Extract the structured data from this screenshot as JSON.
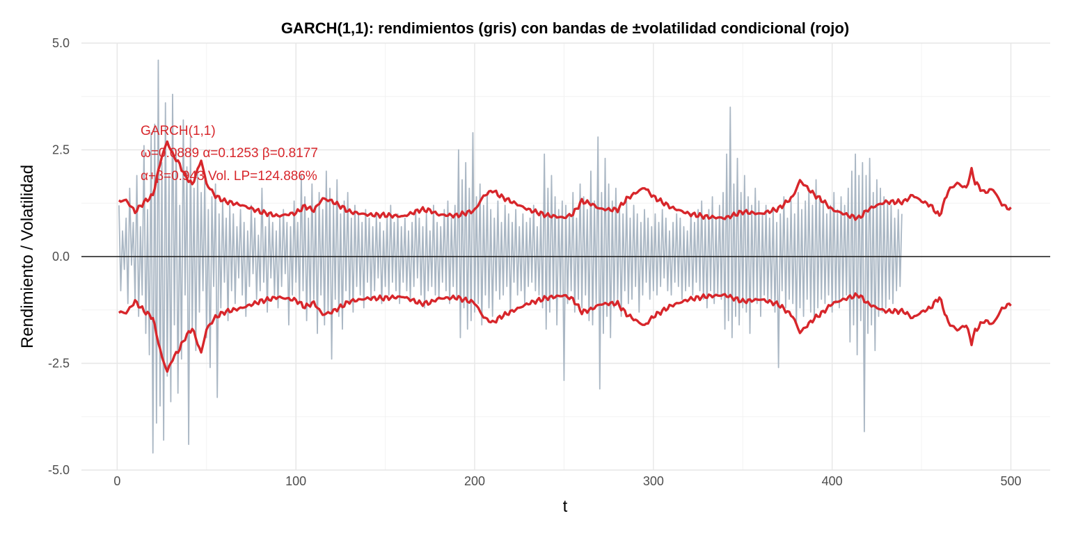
{
  "chart_data": {
    "type": "line",
    "title": "GARCH(1,1): rendimientos (gris) con bandas de ±volatilidad condicional (rojo)",
    "xlabel": "t",
    "ylabel": "Rendimiento / Volatilidad",
    "xlim": [
      -20,
      522
    ],
    "ylim": [
      -5.0,
      5.0
    ],
    "x_ticks": [
      0,
      100,
      200,
      300,
      400,
      500
    ],
    "x_tick_labels": [
      "0",
      "100",
      "200",
      "300",
      "400",
      "500"
    ],
    "y_ticks": [
      -5.0,
      -2.5,
      0.0,
      2.5,
      5.0
    ],
    "y_tick_labels": [
      "-5.0",
      "-2.5",
      "0.0",
      "2.5",
      "5.0"
    ],
    "grid": true,
    "hline": 0,
    "colors": {
      "returns": "#aab7c4",
      "bands": "#d7262b",
      "zero_line": "#1a1a1a",
      "annotation": "#d7262b"
    },
    "annotation": {
      "lines": [
        "GARCH(1,1)",
        "ω=0.0889  α=0.1253  β=0.8177",
        "α+β=0.943  Vol. LP=124.886%"
      ]
    },
    "series": [
      {
        "role": "returns",
        "n": 500,
        "summary": {
          "min": -4.6,
          "max": 4.6
        },
        "values": [
          1.2,
          -0.8,
          0.6,
          -0.3,
          0.9,
          -1.1,
          1.6,
          -0.2,
          0.8,
          -1.0,
          1.9,
          -1.4,
          0.7,
          -0.9,
          2.6,
          -1.8,
          1.1,
          -2.3,
          2.9,
          -4.6,
          3.1,
          -3.9,
          4.6,
          -3.5,
          2.2,
          -4.3,
          3.6,
          -2.8,
          1.9,
          -3.4,
          3.8,
          -1.6,
          2.5,
          -3.2,
          1.2,
          -2.4,
          3.2,
          -0.9,
          2.1,
          -4.4,
          2.8,
          -1.7,
          1.6,
          -2.2,
          2.0,
          -1.3,
          1.5,
          -0.8,
          1.8,
          -1.9,
          1.1,
          -2.6,
          1.4,
          -0.7,
          1.7,
          -3.3,
          1.0,
          -1.2,
          1.3,
          -0.6,
          0.9,
          -1.5,
          1.2,
          -0.8,
          1.0,
          -1.1,
          0.7,
          -0.5,
          1.1,
          -0.9,
          0.8,
          -1.4,
          0.6,
          -0.7,
          1.2,
          -0.4,
          0.9,
          -1.0,
          0.5,
          -0.8,
          1.6,
          -0.6,
          0.7,
          -1.3,
          1.0,
          -0.5,
          0.8,
          -0.9,
          0.6,
          -1.2,
          0.9,
          -0.7,
          1.1,
          -0.4,
          0.8,
          -1.6,
          0.7,
          -0.9,
          1.3,
          -0.6,
          0.8,
          -1.1,
          1.9,
          -0.8,
          1.4,
          -1.5,
          0.9,
          -1.2,
          1.7,
          -1.0,
          1.2,
          -1.8,
          1.5,
          -0.9,
          1.1,
          -1.6,
          2.0,
          -1.3,
          1.6,
          -2.4,
          1.2,
          -1.0,
          1.8,
          -1.4,
          1.0,
          -1.7,
          1.3,
          -0.8,
          1.5,
          -1.1,
          0.9,
          -1.3,
          1.2,
          -0.7,
          1.0,
          -0.9,
          0.8,
          -1.2,
          1.1,
          -0.6,
          0.9,
          -1.0,
          0.7,
          -0.8,
          1.0,
          -0.5,
          0.8,
          -1.1,
          0.6,
          -0.7,
          0.9,
          -0.9,
          1.2,
          -0.6,
          0.8,
          -0.8,
          1.0,
          -1.1,
          0.7,
          -0.6,
          0.9,
          -0.8,
          0.6,
          -1.0,
          0.8,
          -0.7,
          1.1,
          -0.5,
          0.9,
          -0.9,
          0.7,
          -1.2,
          1.0,
          -0.8,
          0.6,
          -0.7,
          1.2,
          -0.9,
          0.8,
          -1.0,
          0.7,
          -0.6,
          1.1,
          -0.8,
          1.3,
          -1.1,
          0.9,
          -0.7,
          1.2,
          -1.0,
          2.5,
          -1.9,
          1.8,
          -1.2,
          2.2,
          -1.7,
          1.6,
          -1.5,
          2.9,
          -1.3,
          1.4,
          -1.1,
          1.7,
          -1.6,
          1.2,
          -0.9,
          1.5,
          -1.2,
          1.1,
          -1.4,
          0.9,
          -0.8,
          1.3,
          -1.0,
          0.8,
          -0.9,
          1.2,
          -0.7,
          1.0,
          -1.3,
          0.8,
          -0.6,
          1.1,
          -0.9,
          0.7,
          -0.8,
          1.0,
          -1.1,
          0.8,
          -0.7,
          0.9,
          -0.6,
          1.2,
          -0.8,
          0.7,
          -0.9,
          1.0,
          -1.2,
          2.4,
          -1.7,
          1.6,
          -1.3,
          1.9,
          -1.0,
          1.4,
          -1.6,
          1.1,
          -0.9,
          1.3,
          -2.9,
          1.2,
          -1.1,
          1.0,
          -0.8,
          1.5,
          -1.3,
          0.9,
          -1.0,
          1.7,
          -1.2,
          1.4,
          -0.9,
          1.1,
          -1.5,
          2.0,
          -1.6,
          1.3,
          -1.1,
          2.8,
          -3.1,
          1.5,
          -1.8,
          2.3,
          -1.4,
          1.7,
          -1.9,
          1.3,
          -1.2,
          1.6,
          -1.0,
          1.2,
          -1.4,
          1.0,
          -0.8,
          1.3,
          -1.1,
          0.9,
          -1.0,
          1.2,
          -0.7,
          1.0,
          -1.3,
          0.8,
          -0.9,
          1.1,
          -0.6,
          0.9,
          -1.0,
          0.7,
          -0.8,
          1.0,
          -0.9,
          0.8,
          -0.7,
          1.1,
          -0.5,
          0.9,
          -0.8,
          0.6,
          -0.9,
          0.8,
          -0.6,
          1.0,
          -0.7,
          0.9,
          -1.0,
          0.7,
          -0.8,
          0.6,
          -0.7,
          1.0,
          -0.9,
          0.8,
          -0.6,
          1.1,
          -0.8,
          1.3,
          -1.0,
          0.9,
          -1.2,
          1.1,
          -0.8,
          1.4,
          -1.1,
          0.9,
          -0.9,
          1.2,
          -1.0,
          1.5,
          -1.7,
          2.4,
          -1.5,
          3.5,
          -1.9,
          1.7,
          -1.4,
          2.3,
          -1.6,
          1.5,
          -1.2,
          1.9,
          -1.3,
          1.4,
          -1.8,
          1.2,
          -1.0,
          1.6,
          -1.1,
          1.3,
          -1.4,
          1.0,
          -0.9,
          1.2,
          -1.1,
          0.9,
          -1.0,
          1.1,
          -1.3,
          0.8,
          -2.6,
          1.0,
          -0.8,
          1.4,
          -1.2,
          0.9,
          -1.0,
          1.3,
          -1.1,
          1.0,
          -1.6,
          1.5,
          -1.2,
          1.1,
          -1.4,
          1.3,
          -1.0,
          1.6,
          -1.3,
          1.2,
          -1.5,
          1.8,
          -1.2,
          1.4,
          -1.0,
          1.3,
          -1.1,
          1.0,
          -0.9,
          1.2,
          -1.3,
          1.5,
          -1.1,
          1.1,
          -1.2,
          1.4,
          -1.0,
          1.2,
          -0.9,
          1.6,
          -2.0,
          2.0,
          -1.6,
          2.4,
          -2.3,
          1.9,
          -1.5,
          2.2,
          -4.1,
          1.9,
          -1.8,
          2.3,
          -1.6,
          1.5,
          -2.2,
          1.8,
          -1.4,
          1.6,
          -1.3,
          1.4,
          -1.2,
          1.3,
          -1.0,
          1.2,
          -1.1,
          0.9,
          -0.8,
          1.1,
          -0.7,
          1.0
        ]
      },
      {
        "role": "band-upper",
        "n": 500,
        "summary": {
          "min": 0.87,
          "max": 2.69,
          "start": 1.3,
          "end": 1.1
        },
        "anchors": [
          [
            1,
            1.3
          ],
          [
            5,
            1.32
          ],
          [
            10,
            1.05
          ],
          [
            15,
            1.27
          ],
          [
            20,
            1.44
          ],
          [
            22,
            1.82
          ],
          [
            25,
            2.35
          ],
          [
            28,
            2.69
          ],
          [
            31,
            2.4
          ],
          [
            35,
            2.15
          ],
          [
            38,
            1.9
          ],
          [
            42,
            1.68
          ],
          [
            47,
            2.26
          ],
          [
            50,
            1.7
          ],
          [
            55,
            1.42
          ],
          [
            60,
            1.3
          ],
          [
            70,
            1.2
          ],
          [
            80,
            1.05
          ],
          [
            90,
            0.95
          ],
          [
            100,
            1.02
          ],
          [
            105,
            1.18
          ],
          [
            110,
            1.08
          ],
          [
            115,
            1.36
          ],
          [
            120,
            1.3
          ],
          [
            125,
            1.18
          ],
          [
            130,
            1.05
          ],
          [
            140,
            0.98
          ],
          [
            150,
            0.97
          ],
          [
            160,
            0.94
          ],
          [
            170,
            1.1
          ],
          [
            175,
            1.08
          ],
          [
            180,
            0.98
          ],
          [
            190,
            0.96
          ],
          [
            200,
            1.08
          ],
          [
            205,
            1.42
          ],
          [
            210,
            1.55
          ],
          [
            215,
            1.4
          ],
          [
            220,
            1.3
          ],
          [
            230,
            1.1
          ],
          [
            240,
            0.97
          ],
          [
            250,
            0.91
          ],
          [
            255,
            1.0
          ],
          [
            260,
            1.3
          ],
          [
            265,
            1.24
          ],
          [
            270,
            1.12
          ],
          [
            275,
            1.1
          ],
          [
            280,
            1.1
          ],
          [
            285,
            1.35
          ],
          [
            290,
            1.49
          ],
          [
            295,
            1.62
          ],
          [
            300,
            1.4
          ],
          [
            310,
            1.15
          ],
          [
            320,
            1.0
          ],
          [
            330,
            0.93
          ],
          [
            340,
            0.9
          ],
          [
            350,
            1.05
          ],
          [
            360,
            1.0
          ],
          [
            370,
            1.12
          ],
          [
            378,
            1.4
          ],
          [
            382,
            1.78
          ],
          [
            390,
            1.45
          ],
          [
            395,
            1.3
          ],
          [
            400,
            1.1
          ],
          [
            410,
            0.95
          ],
          [
            415,
            0.9
          ],
          [
            420,
            1.1
          ],
          [
            425,
            1.2
          ],
          [
            430,
            1.28
          ],
          [
            440,
            1.28
          ],
          [
            445,
            1.44
          ],
          [
            450,
            1.3
          ],
          [
            455,
            1.2
          ],
          [
            460,
            0.95
          ],
          [
            465,
            1.55
          ],
          [
            470,
            1.72
          ],
          [
            475,
            1.6
          ],
          [
            478,
            2.02
          ],
          [
            480,
            1.74
          ],
          [
            485,
            1.5
          ],
          [
            490,
            1.58
          ],
          [
            495,
            1.22
          ],
          [
            500,
            1.1
          ]
        ]
      },
      {
        "role": "band-lower",
        "n": 500,
        "summary": {
          "min": -2.69,
          "max": -0.87,
          "start": -1.3,
          "end": -1.1
        },
        "note_symmetric": true
      }
    ]
  }
}
